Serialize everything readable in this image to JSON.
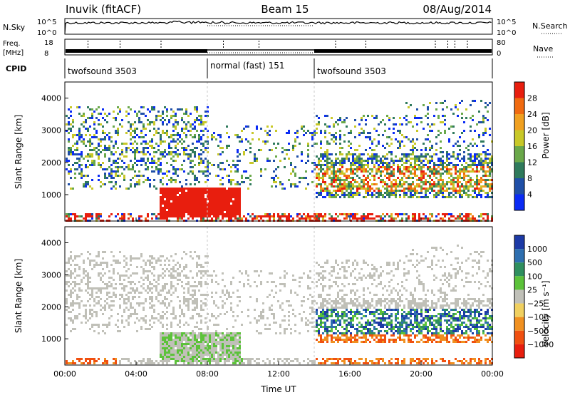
{
  "header": {
    "station": "Inuvik (fitACF)",
    "beam": "Beam 15",
    "date": "08/Aug/2014"
  },
  "status_rows": {
    "nsky": {
      "label": "N.Sky",
      "left_ticks": [
        "10^5",
        "10^0"
      ],
      "right_ticks": [
        "10^5",
        "10^0"
      ],
      "right_label": "N.Search"
    },
    "freq": {
      "label_line1": "Freq.",
      "label_line2": "[MHz]",
      "left_ticks": [
        "18",
        "8"
      ],
      "right_ticks": [
        "80",
        "0"
      ],
      "right_label": "Nave"
    },
    "cpid": {
      "label": "CPID",
      "segments": [
        {
          "name": "twofsound 3503",
          "start_h": 0,
          "end_h": 8
        },
        {
          "name": "normal (fast) 151",
          "start_h": 8,
          "end_h": 14
        },
        {
          "name": "twofsound 3503",
          "start_h": 14,
          "end_h": 24
        }
      ]
    }
  },
  "chart_data": [
    {
      "type": "heatmap",
      "panel": "power",
      "xlabel": "",
      "ylabel": "Slant Range [km]",
      "xlim": [
        0,
        24
      ],
      "ylim": [
        180,
        4500
      ],
      "y_ticks": [
        "1000",
        "2000",
        "3000",
        "4000"
      ],
      "colorbar": {
        "label": "Power [dB]",
        "tick_labels": [
          "4",
          "8",
          "12",
          "16",
          "20",
          "24",
          "28"
        ],
        "colors": [
          "#0a2bf5",
          "#1f4fa7",
          "#2f7a5c",
          "#6aa84a",
          "#c8c828",
          "#f0a020",
          "#f06a10",
          "#e81e0e"
        ]
      }
    },
    {
      "type": "heatmap",
      "panel": "velocity",
      "xlabel": "Time UT",
      "ylabel": "Slant Range [km]",
      "xlim": [
        0,
        24
      ],
      "ylim": [
        180,
        4500
      ],
      "x_ticks": [
        "00:00",
        "04:00",
        "08:00",
        "12:00",
        "16:00",
        "20:00",
        "00:00"
      ],
      "y_ticks": [
        "1000",
        "2000",
        "3000",
        "4000"
      ],
      "colorbar": {
        "label": "Velocity [m s⁻¹]",
        "tick_labels": [
          "1000",
          "500",
          "100",
          "25",
          "−25",
          "−100",
          "−500",
          "−1000"
        ],
        "colors": [
          "#1c3aa6",
          "#2e6fb0",
          "#2f8f5f",
          "#5cc23a",
          "#c0c0b8",
          "#f0d060",
          "#f09020",
          "#f05010",
          "#e81e0e"
        ]
      }
    }
  ]
}
